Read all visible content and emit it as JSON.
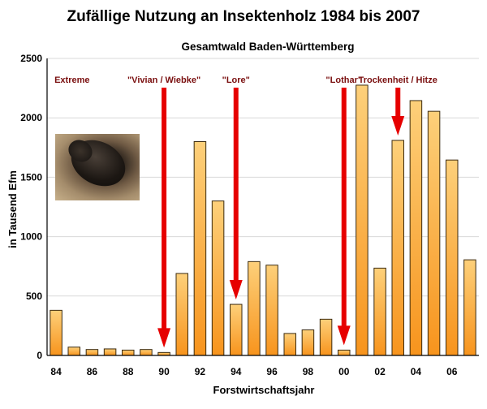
{
  "title": "Zufällige Nutzung an Insektenholz 1984 bis 2007",
  "subtitle": "Gesamtwald Baden-Württemberg",
  "colors": {
    "bar_top": "#fdd07a",
    "bar_bottom": "#f7941d",
    "bar_stroke": "#3a2a10",
    "arrow": "#e60000",
    "annotation_text": "#7a0f0f"
  },
  "chart_data": {
    "type": "bar",
    "title": "Zufällige Nutzung an Insektenholz 1984 bis 2007",
    "subtitle": "Gesamtwald Baden-Württemberg",
    "xlabel": "Forstwirtschaftsjahr",
    "ylabel": "in Tausend Efm",
    "ylim": [
      0,
      2500
    ],
    "yticks": [
      "0",
      "500",
      "1000",
      "1500",
      "2000",
      "2500"
    ],
    "categories": [
      "84",
      "85",
      "86",
      "87",
      "88",
      "89",
      "90",
      "91",
      "92",
      "93",
      "94",
      "95",
      "96",
      "97",
      "98",
      "99",
      "00",
      "01",
      "02",
      "03",
      "04",
      "05",
      "06",
      "07"
    ],
    "xtick_labels": [
      "84",
      "86",
      "88",
      "90",
      "92",
      "94",
      "96",
      "98",
      "00",
      "02",
      "04",
      "06"
    ],
    "values": [
      380,
      70,
      50,
      55,
      45,
      50,
      25,
      690,
      1800,
      1300,
      430,
      790,
      760,
      185,
      215,
      305,
      45,
      2275,
      735,
      1810,
      2145,
      2055,
      1645,
      805
    ],
    "grid": true,
    "annotations": [
      {
        "text": "Extreme",
        "arrow_to": null
      },
      {
        "text": "\"Vivian / Wiebke\"",
        "arrow_to": "90"
      },
      {
        "text": "\"Lore\"",
        "arrow_to": "94"
      },
      {
        "text": "\"Lothar\"",
        "arrow_to": "00"
      },
      {
        "text": "Trockenheit / Hitze",
        "arrow_to": "03"
      }
    ]
  }
}
